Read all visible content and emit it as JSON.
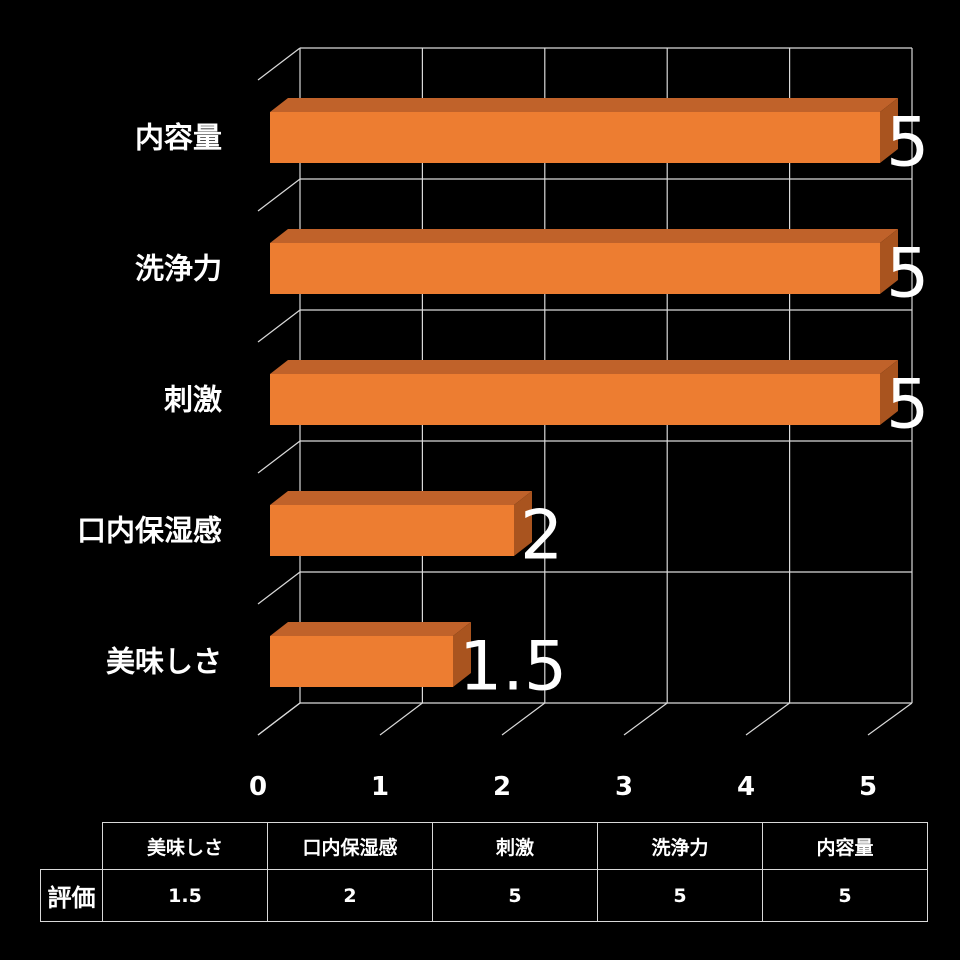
{
  "chart_data": {
    "type": "bar",
    "orientation": "horizontal",
    "style": "3d",
    "categories": [
      "内容量",
      "洗浄力",
      "刺激",
      "口内保湿感",
      "美味しさ"
    ],
    "values": [
      5,
      5,
      5,
      2,
      1.5
    ],
    "value_labels": [
      "5",
      "5",
      "5",
      "2",
      "1.5"
    ],
    "xlim": [
      0,
      5
    ],
    "x_ticks": [
      "0",
      "1",
      "2",
      "3",
      "4",
      "5"
    ],
    "grid": true,
    "legend": "none",
    "bar_color": "#ED7D31",
    "bar_top_color": "#C0622A"
  },
  "table": {
    "headers": [
      "美味しさ",
      "口内保湿感",
      "刺激",
      "洗浄力",
      "内容量"
    ],
    "row_label": "評価",
    "values": [
      "1.5",
      "2",
      "5",
      "5",
      "5"
    ]
  }
}
